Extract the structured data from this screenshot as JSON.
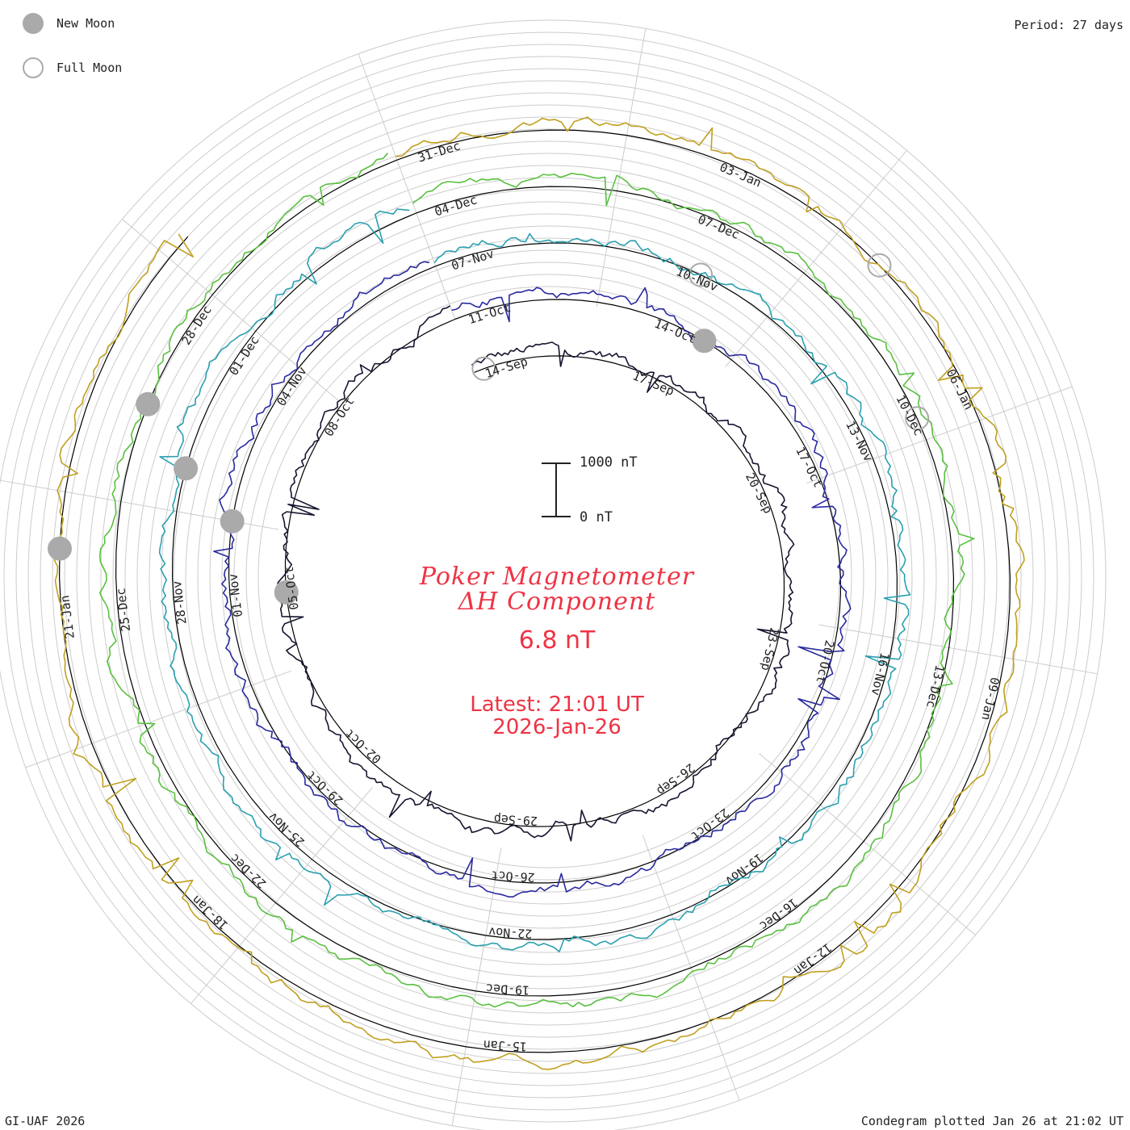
{
  "legend": {
    "new_moon_label": "New Moon",
    "full_moon_label": "Full Moon",
    "new_moon_color": "#aaaaaa"
  },
  "period_label": "Period: 27 days",
  "credit": "GI-UAF 2026",
  "plotted": "Condegram plotted Jan 26 at 21:02 UT",
  "title": {
    "line1": "Poker Magnetometer",
    "line2": "ΔH Component",
    "value": "6.8 nT",
    "latest": "Latest: 21:01 UT",
    "latest_date": "2026-Jan-26",
    "color": "#ee3344"
  },
  "scale_bar": {
    "top_label": "1000 nT",
    "bottom_label": "0 nT"
  },
  "chart_data": {
    "type": "line",
    "title": "Poker Magnetometer ΔH Component",
    "period_days": 27,
    "scale_nT": 1000,
    "series": [
      {
        "name": "",
        "color": "#151530",
        "date_labels": [
          "14-Sep",
          "17-Sep",
          "20-Sep",
          "23-Sep",
          "26-Sep",
          "29-Sep",
          "02-Oct",
          "05-Oct",
          "08-Oct"
        ]
      },
      {
        "name": "",
        "color": "#2a2aa0",
        "date_labels": [
          "11-Oct",
          "14-Oct",
          "17-Oct",
          "20-Oct",
          "23-Oct",
          "26-Oct",
          "29-Oct",
          "01-Nov",
          "04-Nov"
        ]
      },
      {
        "name": "",
        "color": "#2aa0b0",
        "date_labels": [
          "07-Nov",
          "10-Nov",
          "13-Nov",
          "16-Nov",
          "19-Nov",
          "22-Nov",
          "25-Nov",
          "28-Nov",
          "01-Dec"
        ]
      },
      {
        "name": "",
        "color": "#5ac040",
        "date_labels": [
          "04-Dec",
          "07-Dec",
          "10-Dec",
          "13-Dec",
          "16-Dec",
          "19-Dec",
          "22-Dec",
          "25-Dec",
          "28-Dec"
        ]
      },
      {
        "name": "",
        "color": "#c0a020",
        "date_labels": [
          "31-Dec",
          "03-Jan",
          "06-Jan",
          "09-Jan",
          "12-Jan",
          "15-Jan",
          "18-Jan",
          "21-Jan"
        ]
      },
      {
        "name": "",
        "color": "#b02010",
        "date_labels": []
      }
    ],
    "moon_markers": [
      {
        "phase": "new",
        "day": 21.5
      },
      {
        "phase": "new",
        "day": 31.0
      },
      {
        "phase": "new",
        "day": 49.5
      },
      {
        "phase": "new",
        "day": 77.0
      },
      {
        "phase": "new",
        "day": 104.5
      },
      {
        "phase": "new",
        "day": 130.0
      },
      {
        "phase": "full",
        "day": 0.2
      },
      {
        "phase": "full",
        "day": 57.5
      },
      {
        "phase": "full",
        "day": 87.5
      },
      {
        "phase": "full",
        "day": 113.0
      }
    ],
    "grid": true
  }
}
